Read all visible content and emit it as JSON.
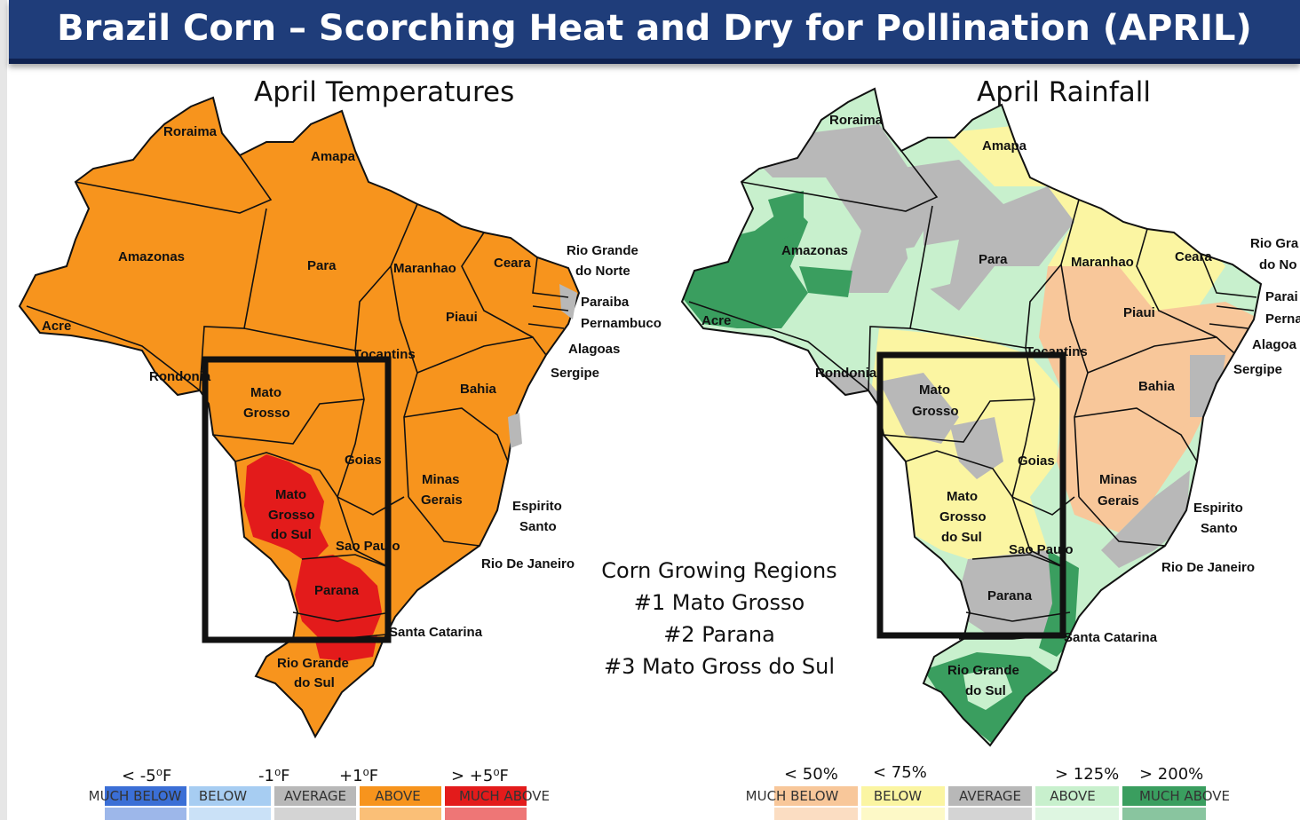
{
  "title": "Brazil Corn – Scorching Heat and Dry for Pollination (APRIL)",
  "colors": {
    "title_bg": "#1f3d7a",
    "temp_above": "#f7941d",
    "temp_much_above": "#e31b1b",
    "rain_below": "#fbf5a2",
    "rain_much_below": "#f8c79a",
    "rain_average": "#b8b8b8",
    "rain_above": "#c8f0cd",
    "rain_much_above": "#3a9e5f"
  },
  "temp_map": {
    "title": "April Temperatures",
    "labels": {
      "roraima": "Roraima",
      "amapa": "Amapa",
      "amazonas": "Amazonas",
      "para": "Para",
      "maranhao": "Maranhao",
      "ceara": "Ceara",
      "rgn1": "Rio Grande",
      "rgn2": "do Norte",
      "paraiba": "Paraiba",
      "pernambuco": "Pernambuco",
      "alagoas": "Alagoas",
      "sergipe": "Sergipe",
      "acre": "Acre",
      "rondonia": "Rondonia",
      "piaui": "Piaui",
      "tocantins": "Tocantins",
      "bahia": "Bahia",
      "mt1": "Mato",
      "mt2": "Grosso",
      "goias": "Goias",
      "mg1": "Minas",
      "mg2": "Gerais",
      "es1": "Espirito",
      "es2": "Santo",
      "ms1": "Mato",
      "ms2": "Grosso",
      "ms3": "do Sul",
      "sp": "Sao Paulo",
      "rj": "Rio De Janeiro",
      "parana": "Parana",
      "sc": "Santa Catarina",
      "rgs1": "Rio Grande",
      "rgs2": "do Sul"
    }
  },
  "rain_map": {
    "title": "April Rainfall",
    "labels": {
      "roraima": "Roraima",
      "amapa": "Amapa",
      "amazonas": "Amazonas",
      "para": "Para",
      "maranhao": "Maranhao",
      "ceara": "Ceara",
      "rgn1": "Rio Gra",
      "rgn2": "do No",
      "paraiba": "Parai",
      "pernambuco": "Perna",
      "alagoas": "Alagoa",
      "sergipe": "Sergipe",
      "acre": "Acre",
      "rondonia": "Rondonia",
      "piaui": "Piaui",
      "tocantins": "Tocantins",
      "bahia": "Bahia",
      "mt1": "Mato",
      "mt2": "Grosso",
      "goias": "Goias",
      "mg1": "Minas",
      "mg2": "Gerais",
      "es1": "Espirito",
      "es2": "Santo",
      "ms1": "Mato",
      "ms2": "Grosso",
      "ms3": "do Sul",
      "sp": "Sao Paulo",
      "rj": "Rio De Janeiro",
      "parana": "Parana",
      "sc": "Santa Catarina",
      "rgs1": "Rio Grande",
      "rgs2": "do Sul"
    }
  },
  "corn_regions": {
    "heading": "Corn Growing Regions",
    "items": [
      "#1 Mato Grosso",
      "#2 Parana",
      "#3 Mato Gross do Sul"
    ]
  },
  "temp_legend": {
    "thresholds": [
      "< -5⁰F",
      "-1⁰F",
      "+1⁰F",
      "> +5⁰F"
    ],
    "categories": [
      "MUCH BELOW",
      "BELOW",
      "AVERAGE",
      "ABOVE",
      "MUCH ABOVE"
    ],
    "colors": [
      "#3b6fd6",
      "#a7cdf2",
      "#b8b8b8",
      "#f7941d",
      "#e31b1b"
    ]
  },
  "rain_legend": {
    "thresholds": [
      "< 50%",
      "< 75%",
      "> 125%",
      "> 200%"
    ],
    "categories": [
      "MUCH BELOW",
      "BELOW",
      "AVERAGE",
      "ABOVE",
      "MUCH ABOVE"
    ],
    "colors": [
      "#f8c79a",
      "#fbf5a2",
      "#b8b8b8",
      "#c8f0cd",
      "#3a9e5f"
    ]
  }
}
